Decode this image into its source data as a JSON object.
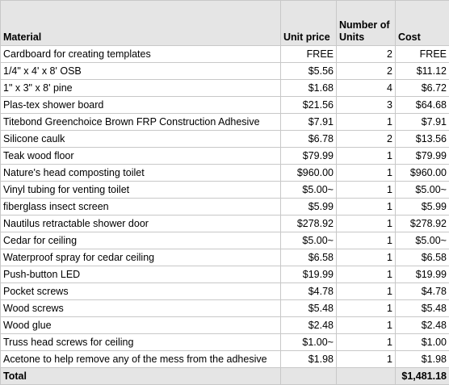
{
  "headers": {
    "material": "Material",
    "unit_price": "Unit price",
    "number_of_units": "Number of Units",
    "cost": "Cost"
  },
  "rows": [
    {
      "material": "Cardboard for creating templates",
      "unit_price": "FREE",
      "units": "2",
      "cost": "FREE"
    },
    {
      "material": "1/4\" x 4' x 8' OSB",
      "unit_price": "$5.56",
      "units": "2",
      "cost": "$11.12"
    },
    {
      "material": "1\" x 3\" x 8' pine",
      "unit_price": "$1.68",
      "units": "4",
      "cost": "$6.72"
    },
    {
      "material": "Plas-tex shower board",
      "unit_price": "$21.56",
      "units": "3",
      "cost": "$64.68"
    },
    {
      "material": "Titebond Greenchoice Brown FRP Construction Adhesive",
      "unit_price": "$7.91",
      "units": "1",
      "cost": "$7.91"
    },
    {
      "material": "Silicone caulk",
      "unit_price": "$6.78",
      "units": "2",
      "cost": "$13.56"
    },
    {
      "material": "Teak wood floor",
      "unit_price": "$79.99",
      "units": "1",
      "cost": "$79.99"
    },
    {
      "material": "Nature's head composting toilet",
      "unit_price": "$960.00",
      "units": "1",
      "cost": "$960.00"
    },
    {
      "material": "Vinyl tubing for venting toilet",
      "unit_price": "$5.00~",
      "units": "1",
      "cost": "$5.00~"
    },
    {
      "material": "fiberglass insect screen",
      "unit_price": "$5.99",
      "units": "1",
      "cost": "$5.99"
    },
    {
      "material": "Nautilus retractable shower door",
      "unit_price": "$278.92",
      "units": "1",
      "cost": "$278.92"
    },
    {
      "material": "Cedar for ceiling",
      "unit_price": "$5.00~",
      "units": "1",
      "cost": "$5.00~"
    },
    {
      "material": "Waterproof spray for cedar ceiling",
      "unit_price": "$6.58",
      "units": "1",
      "cost": "$6.58"
    },
    {
      "material": "Push-button LED",
      "unit_price": "$19.99",
      "units": "1",
      "cost": "$19.99"
    },
    {
      "material": "Pocket screws",
      "unit_price": "$4.78",
      "units": "1",
      "cost": "$4.78"
    },
    {
      "material": "Wood screws",
      "unit_price": "$5.48",
      "units": "1",
      "cost": "$5.48"
    },
    {
      "material": "Wood glue",
      "unit_price": "$2.48",
      "units": "1",
      "cost": "$2.48"
    },
    {
      "material": "Truss head screws for ceiling",
      "unit_price": "$1.00~",
      "units": "1",
      "cost": "$1.00"
    },
    {
      "material": "Acetone to help remove any of the mess from the adhesive",
      "unit_price": "$1.98",
      "units": "1",
      "cost": "$1.98"
    }
  ],
  "total": {
    "label": "Total",
    "cost": "$1,481.18"
  }
}
